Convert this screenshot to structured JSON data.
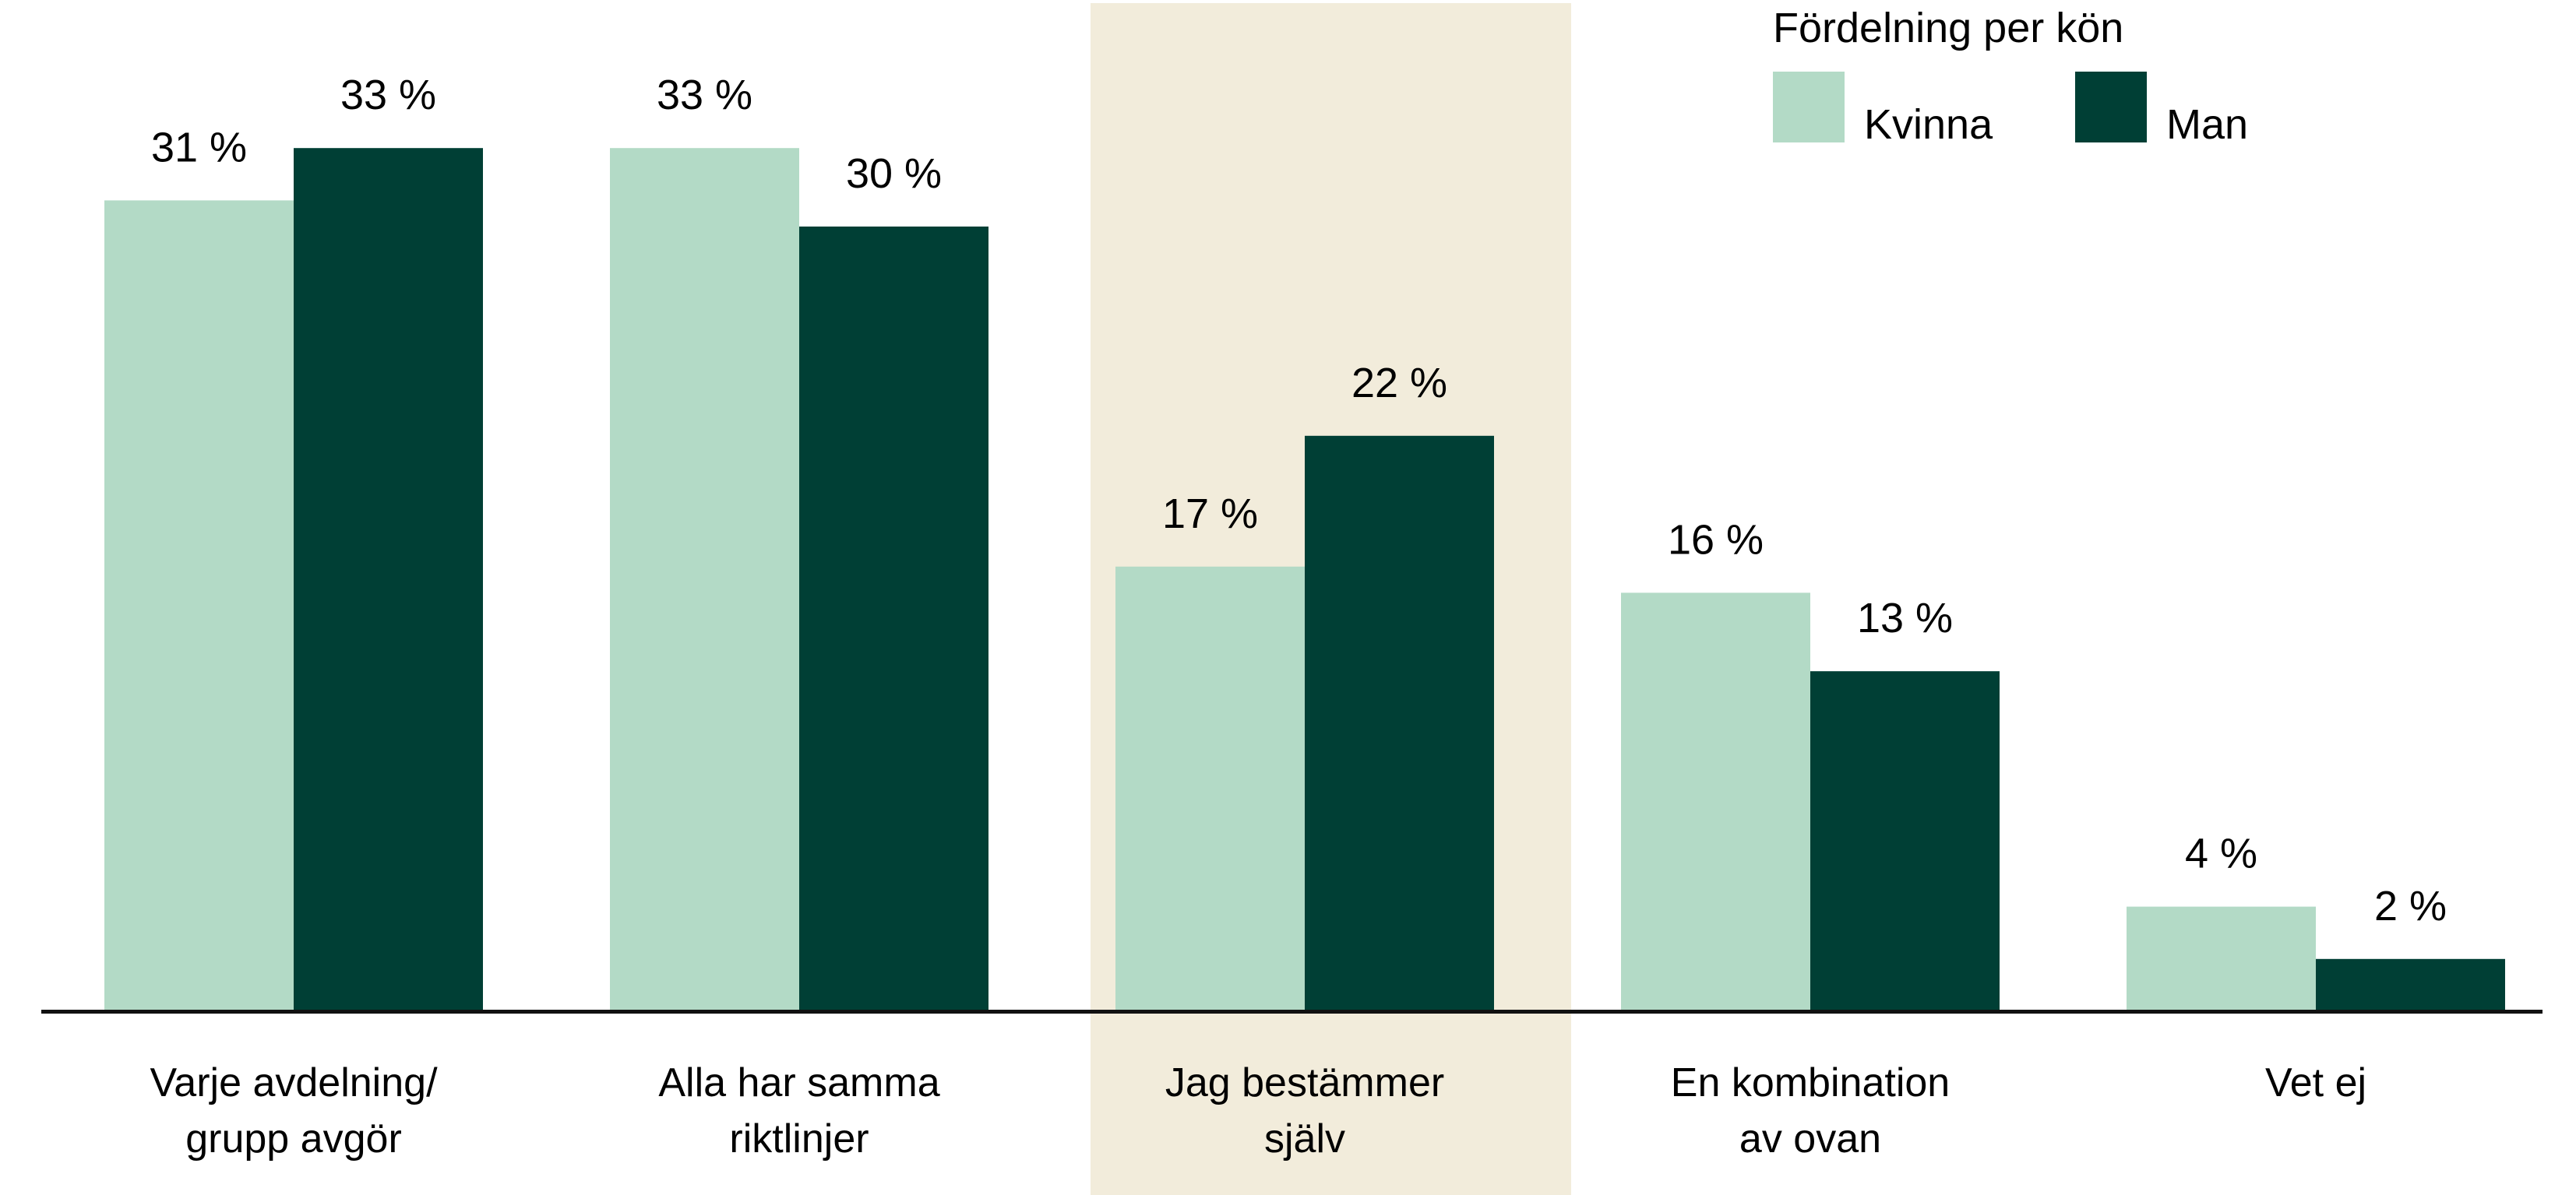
{
  "chart_data": {
    "type": "bar",
    "title": "",
    "xlabel": "",
    "ylabel": "",
    "ylim": [
      0,
      33
    ],
    "grid": false,
    "categories": [
      [
        "Varje avdelning/",
        "grupp avgör"
      ],
      [
        "Alla har samma",
        "riktlinjer"
      ],
      [
        "Jag bestämmer",
        "själv"
      ],
      [
        "En kombination",
        "av ovan"
      ],
      [
        "Vet ej"
      ]
    ],
    "highlighted_category_index": 2,
    "series": [
      {
        "name": "Kvinna",
        "color": "#b3dac6",
        "values": [
          31,
          33,
          17,
          16,
          4
        ],
        "labels": [
          "31 %",
          "33 %",
          "17 %",
          "16 %",
          "4 %"
        ]
      },
      {
        "name": "Man",
        "color": "#003f35",
        "values": [
          33,
          30,
          22,
          13,
          2
        ],
        "labels": [
          "33 %",
          "30 %",
          "22 %",
          "13 %",
          "2 %"
        ]
      }
    ],
    "legend": {
      "title": "Fördelning per kön",
      "placement": "top-right"
    },
    "highlight_color": "#f2ecdb"
  }
}
